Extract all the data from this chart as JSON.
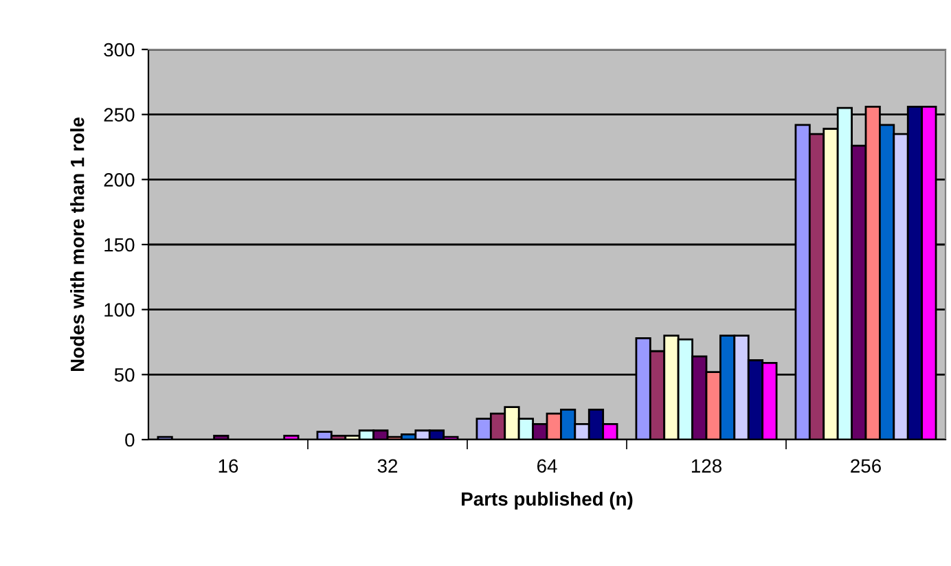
{
  "chart_data": {
    "type": "bar",
    "xlabel": "Parts published (n)",
    "ylabel": "Nodes with more than 1 role",
    "categories": [
      "16",
      "32",
      "64",
      "128",
      "256"
    ],
    "series": [
      {
        "color": "#9999ff",
        "values": [
          2,
          6,
          16,
          78,
          242
        ]
      },
      {
        "color": "#993366",
        "values": [
          null,
          3,
          20,
          68,
          235
        ]
      },
      {
        "color": "#ffffcc",
        "values": [
          null,
          3,
          25,
          80,
          239
        ]
      },
      {
        "color": "#ccffff",
        "values": [
          null,
          7,
          16,
          77,
          255
        ]
      },
      {
        "color": "#660066",
        "values": [
          3,
          7,
          12,
          64,
          226
        ]
      },
      {
        "color": "#ff8080",
        "values": [
          null,
          2,
          20,
          52,
          256
        ]
      },
      {
        "color": "#0066cc",
        "values": [
          null,
          4,
          23,
          80,
          242
        ]
      },
      {
        "color": "#ccccff",
        "values": [
          null,
          7,
          12,
          80,
          235
        ]
      },
      {
        "color": "#000080",
        "values": [
          null,
          7,
          23,
          61,
          256
        ]
      },
      {
        "color": "#ff00ff",
        "values": [
          3,
          2,
          12,
          59,
          256
        ]
      }
    ],
    "ylim": [
      0,
      300
    ],
    "yticks": [
      0,
      50,
      100,
      150,
      200,
      250,
      300
    ],
    "grid": "y",
    "legend": false
  }
}
